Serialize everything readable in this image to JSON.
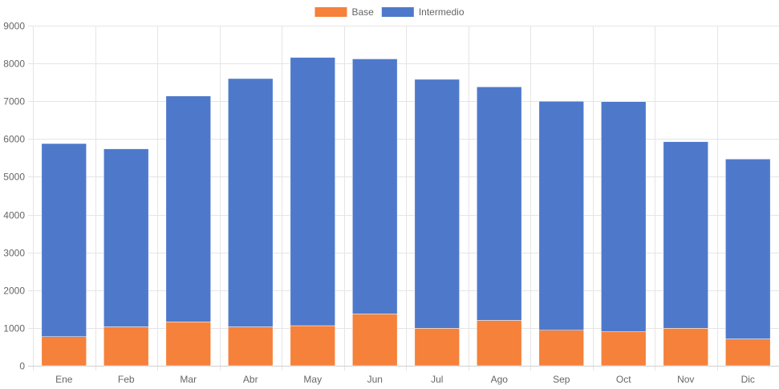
{
  "chart_data": {
    "type": "bar",
    "stacked": true,
    "categories": [
      "Ene",
      "Feb",
      "Mar",
      "Abr",
      "May",
      "Jun",
      "Jul",
      "Ago",
      "Sep",
      "Oct",
      "Nov",
      "Dic"
    ],
    "series": [
      {
        "name": "Base",
        "color": "#f5813a",
        "values": [
          770,
          1030,
          1160,
          1030,
          1060,
          1370,
          990,
          1200,
          940,
          900,
          990,
          710
        ]
      },
      {
        "name": "Intermedio",
        "color": "#4e79cb",
        "values": [
          5110,
          4710,
          5980,
          6570,
          7100,
          6750,
          6590,
          6180,
          6060,
          6090,
          4940,
          4760
        ]
      }
    ],
    "ylim": [
      0,
      9000
    ],
    "yticks": [
      0,
      1000,
      2000,
      3000,
      4000,
      5000,
      6000,
      7000,
      8000,
      9000
    ],
    "title": "",
    "xlabel": "",
    "ylabel": "",
    "grid": true,
    "legend_position": "top-center"
  }
}
